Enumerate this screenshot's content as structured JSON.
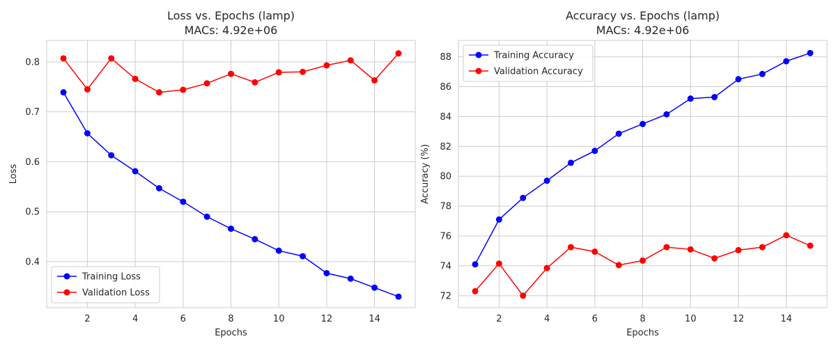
{
  "chart_data": [
    {
      "type": "line",
      "title": "Loss vs. Epochs (lamp)",
      "subtitle": "MACs: 4.92e+06",
      "xlabel": "Epochs",
      "ylabel": "Loss",
      "xlim": [
        0.3,
        15.7
      ],
      "ylim": [
        0.308,
        0.843
      ],
      "xticks": [
        2,
        4,
        6,
        8,
        10,
        12,
        14
      ],
      "yticks": [
        0.4,
        0.5,
        0.6,
        0.7,
        0.8
      ],
      "ytick_decimals": 1,
      "grid": true,
      "legend_position": "lower-left",
      "x": [
        1,
        2,
        3,
        4,
        5,
        6,
        7,
        8,
        9,
        10,
        11,
        12,
        13,
        14,
        15
      ],
      "series": [
        {
          "name": "Training Loss",
          "color": "#0000ff",
          "values": [
            0.739,
            0.657,
            0.613,
            0.581,
            0.547,
            0.52,
            0.49,
            0.466,
            0.445,
            0.422,
            0.411,
            0.377,
            0.366,
            0.348,
            0.33
          ]
        },
        {
          "name": "Validation Loss",
          "color": "#ff0000",
          "values": [
            0.807,
            0.745,
            0.807,
            0.766,
            0.739,
            0.744,
            0.757,
            0.776,
            0.759,
            0.779,
            0.78,
            0.793,
            0.803,
            0.763,
            0.817
          ]
        }
      ]
    },
    {
      "type": "line",
      "title": "Accuracy vs. Epochs (lamp)",
      "subtitle": "MACs: 4.92e+06",
      "xlabel": "Epochs",
      "ylabel": "Accuracy (%)",
      "xlim": [
        0.3,
        15.7
      ],
      "ylim": [
        71.2,
        89.1
      ],
      "xticks": [
        2,
        4,
        6,
        8,
        10,
        12,
        14
      ],
      "yticks": [
        72,
        74,
        76,
        78,
        80,
        82,
        84,
        86,
        88
      ],
      "ytick_decimals": 0,
      "grid": true,
      "legend_position": "upper-left",
      "x": [
        1,
        2,
        3,
        4,
        5,
        6,
        7,
        8,
        9,
        10,
        11,
        12,
        13,
        14,
        15
      ],
      "series": [
        {
          "name": "Training Accuracy",
          "color": "#0000ff",
          "values": [
            74.1,
            77.1,
            78.55,
            79.7,
            80.9,
            81.7,
            82.85,
            83.5,
            84.15,
            85.2,
            85.3,
            86.5,
            86.85,
            87.7,
            88.25
          ]
        },
        {
          "name": "Validation Accuracy",
          "color": "#ff0000",
          "values": [
            72.3,
            74.15,
            72.0,
            73.85,
            75.25,
            74.95,
            74.05,
            74.35,
            75.25,
            75.1,
            74.5,
            75.05,
            75.25,
            76.05,
            75.35
          ]
        }
      ]
    }
  ]
}
